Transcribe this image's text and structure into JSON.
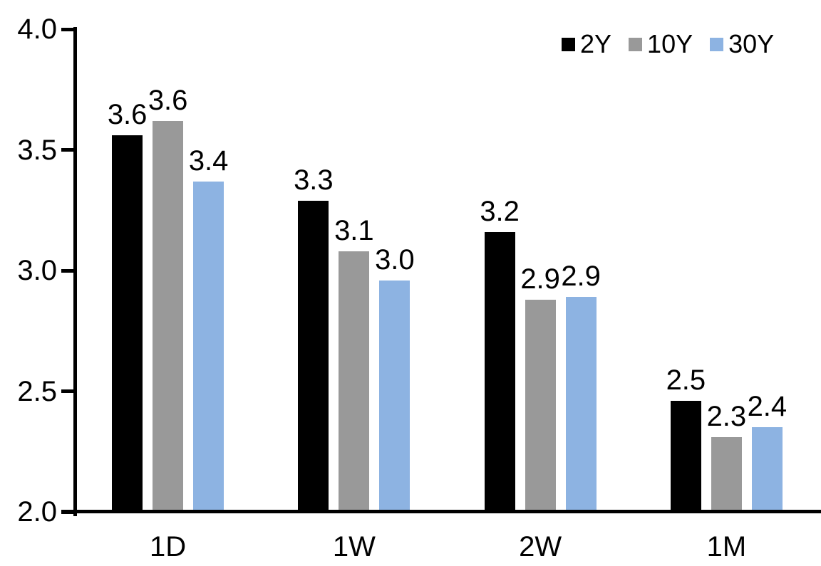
{
  "chart_data": {
    "type": "bar",
    "title": "",
    "xlabel": "",
    "ylabel": "",
    "categories": [
      "1D",
      "1W",
      "2W",
      "1M"
    ],
    "series": [
      {
        "name": "2Y",
        "color": "#000000",
        "values": [
          3.6,
          3.3,
          3.2,
          2.5
        ],
        "bar_heights": [
          3.56,
          3.29,
          3.16,
          2.46
        ]
      },
      {
        "name": "10Y",
        "color": "#999999",
        "values": [
          3.6,
          3.1,
          2.9,
          2.3
        ],
        "bar_heights": [
          3.62,
          3.08,
          2.88,
          2.31
        ]
      },
      {
        "name": "30Y",
        "color": "#8DB3E2",
        "values": [
          3.4,
          3.0,
          2.9,
          2.4
        ],
        "bar_heights": [
          3.37,
          2.96,
          2.89,
          2.35
        ]
      }
    ],
    "ylim": [
      2.0,
      4.0
    ],
    "yticks": [
      {
        "value": 4.0,
        "label": "4.0"
      },
      {
        "value": 3.5,
        "label": "3.5"
      },
      {
        "value": 3.0,
        "label": "3.0"
      },
      {
        "value": 2.5,
        "label": "2.5"
      },
      {
        "value": 2.0,
        "label": "2.0"
      }
    ],
    "grid": false,
    "legend_position": "top-right",
    "data_labels_shown": true,
    "data_label_decimals": 1,
    "axis_color": "#000000",
    "background": "#FFFFFF"
  }
}
